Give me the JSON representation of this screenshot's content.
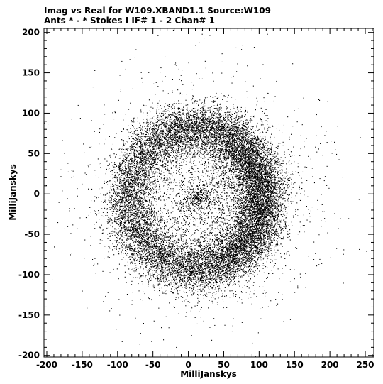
{
  "chart_data": {
    "type": "scatter",
    "title_line1": "Imag vs Real for W109.XBAND1.1   Source:W109",
    "title_line2": "Ants * - *     Stokes I  IF# 1 - 2  Chan# 1",
    "xlabel": "MilliJanskys",
    "ylabel": "MilliJanskys",
    "xlim": [
      -204,
      262
    ],
    "ylim": [
      -202,
      205
    ],
    "xticks": [
      -200,
      -150,
      -100,
      -50,
      0,
      50,
      100,
      150,
      200,
      250
    ],
    "yticks": [
      -200,
      -150,
      -100,
      -50,
      0,
      50,
      100,
      150,
      200
    ],
    "grid": false,
    "marker_color": "#000000",
    "distribution": {
      "shape": "ring",
      "center": [
        10,
        -5
      ],
      "inner_radius": 65,
      "outer_radius": 120,
      "density_peak": "right-side",
      "n_points_approx": 20000,
      "note": "dense annulus of points; outliers scattered out to about ±200"
    }
  }
}
